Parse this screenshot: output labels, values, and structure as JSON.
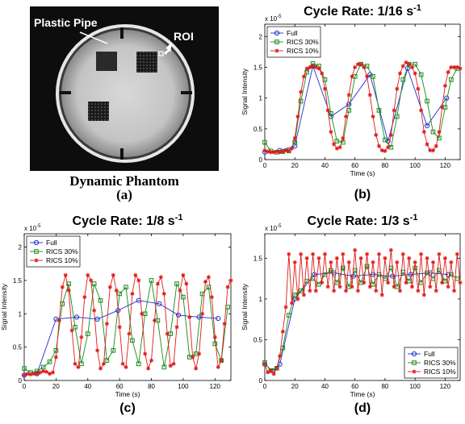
{
  "phantom": {
    "pipe_label": "Plastic Pipe",
    "roi_label": "ROI",
    "title": "Dynamic Phantom",
    "caption": "(a)"
  },
  "chart_data": [
    {
      "id": "b",
      "type": "line",
      "title_main": "Cycle Rate: 1/16 s",
      "title_sup": "-1",
      "caption": "(b)",
      "xlabel": "Time (s)",
      "ylabel": "Signal Intensity",
      "exponent_label": "x 10",
      "exponent_sup": "-5",
      "xlim": [
        0,
        130
      ],
      "ylim": [
        0,
        2.2
      ],
      "xticks": [
        "0",
        "20",
        "40",
        "60",
        "80",
        "100",
        "120"
      ],
      "yticks": [
        "0",
        "0.5",
        "1",
        "1.5",
        "2"
      ],
      "legend_position": "top-left",
      "series": [
        {
          "name": "Full",
          "color": "#1f2fd1",
          "marker": "circle",
          "x": [
            0,
            10,
            20,
            32,
            44,
            56,
            70,
            82,
            95,
            108,
            121
          ],
          "y": [
            0.12,
            0.15,
            0.22,
            1.52,
            0.7,
            0.9,
            1.38,
            0.3,
            1.48,
            0.55,
            1.0
          ]
        },
        {
          "name": "RICS 30%",
          "color": "#1a8a1a",
          "marker": "square",
          "x": [
            0,
            4,
            8,
            12,
            16,
            20,
            24,
            28,
            32,
            36,
            40,
            44,
            48,
            52,
            56,
            60,
            64,
            68,
            72,
            76,
            80,
            84,
            88,
            92,
            96,
            100,
            104,
            108,
            112,
            116,
            120,
            124,
            128
          ],
          "y": [
            0.28,
            0.14,
            0.12,
            0.13,
            0.14,
            0.28,
            0.95,
            1.42,
            1.56,
            1.52,
            1.3,
            0.75,
            0.3,
            0.28,
            0.8,
            1.35,
            1.55,
            1.52,
            1.35,
            0.8,
            0.32,
            0.2,
            0.7,
            1.3,
            1.55,
            1.55,
            1.38,
            0.95,
            0.45,
            0.35,
            0.85,
            1.3,
            1.48
          ]
        },
        {
          "name": "RICS 10%",
          "color": "#e01a1a",
          "marker": "star",
          "x": [
            0,
            2,
            4,
            6,
            8,
            10,
            12,
            14,
            16,
            18,
            20,
            22,
            24,
            26,
            28,
            30,
            32,
            34,
            36,
            38,
            40,
            42,
            44,
            46,
            48,
            50,
            52,
            54,
            56,
            58,
            60,
            62,
            64,
            66,
            68,
            70,
            72,
            74,
            76,
            78,
            80,
            82,
            84,
            86,
            88,
            90,
            92,
            94,
            96,
            98,
            100,
            102,
            104,
            106,
            108,
            110,
            112,
            114,
            116,
            118,
            120,
            122,
            124,
            126,
            128,
            130
          ],
          "y": [
            0.15,
            0.13,
            0.12,
            0.12,
            0.13,
            0.12,
            0.13,
            0.15,
            0.14,
            0.18,
            0.35,
            0.7,
            1.1,
            1.35,
            1.48,
            1.5,
            1.52,
            1.5,
            1.48,
            1.4,
            1.15,
            0.8,
            0.45,
            0.25,
            0.18,
            0.2,
            0.35,
            0.7,
            1.05,
            1.35,
            1.5,
            1.55,
            1.55,
            1.5,
            1.35,
            1.05,
            0.7,
            0.4,
            0.22,
            0.15,
            0.14,
            0.2,
            0.4,
            0.8,
            1.15,
            1.4,
            1.52,
            1.58,
            1.55,
            1.5,
            1.4,
            1.15,
            0.8,
            0.45,
            0.25,
            0.15,
            0.15,
            0.22,
            0.45,
            0.85,
            1.2,
            1.42,
            1.5,
            1.5,
            1.5,
            1.48
          ]
        }
      ]
    },
    {
      "id": "c",
      "type": "line",
      "title_main": "Cycle Rate: 1/8 s",
      "title_sup": "-1",
      "caption": "(c)",
      "xlabel": "Time (s)",
      "ylabel": "Signal Intensity",
      "exponent_label": "x 10",
      "exponent_sup": "-5",
      "xlim": [
        0,
        130
      ],
      "ylim": [
        0,
        2.2
      ],
      "xticks": [
        "0",
        "20",
        "40",
        "60",
        "80",
        "100",
        "120"
      ],
      "yticks": [
        "0",
        "0.5",
        "1",
        "1.5",
        "2"
      ],
      "legend_position": "top-left",
      "series": [
        {
          "name": "Full",
          "color": "#1f2fd1",
          "marker": "circle",
          "x": [
            0,
            8,
            20,
            33,
            46,
            59,
            72,
            85,
            97,
            110,
            122
          ],
          "y": [
            0.08,
            0.1,
            0.92,
            0.95,
            0.92,
            1.05,
            1.2,
            1.15,
            0.98,
            0.95,
            0.93
          ]
        },
        {
          "name": "RICS 30%",
          "color": "#1a8a1a",
          "marker": "square",
          "x": [
            0,
            4,
            8,
            12,
            16,
            20,
            24,
            28,
            32,
            36,
            40,
            44,
            48,
            52,
            56,
            60,
            64,
            68,
            72,
            76,
            80,
            84,
            88,
            92,
            96,
            100,
            104,
            108,
            112,
            116,
            120,
            124,
            128
          ],
          "y": [
            0.18,
            0.12,
            0.14,
            0.2,
            0.28,
            0.45,
            1.15,
            1.45,
            0.8,
            0.25,
            0.7,
            1.45,
            1.2,
            0.3,
            0.45,
            1.3,
            1.4,
            0.6,
            0.25,
            1.0,
            1.5,
            0.9,
            0.2,
            0.7,
            1.45,
            1.25,
            0.35,
            0.4,
            1.3,
            1.4,
            0.55,
            0.3,
            1.1
          ]
        },
        {
          "name": "RICS 10%",
          "color": "#e01a1a",
          "marker": "star",
          "x": [
            0,
            2,
            4,
            6,
            8,
            10,
            12,
            14,
            16,
            18,
            20,
            22,
            24,
            26,
            28,
            30,
            32,
            34,
            36,
            38,
            40,
            42,
            44,
            46,
            48,
            50,
            52,
            54,
            56,
            58,
            60,
            62,
            64,
            66,
            68,
            70,
            72,
            74,
            76,
            78,
            80,
            82,
            84,
            86,
            88,
            90,
            92,
            94,
            96,
            98,
            100,
            102,
            104,
            106,
            108,
            110,
            112,
            114,
            116,
            118,
            120,
            122,
            124,
            126,
            128,
            130
          ],
          "y": [
            0.08,
            0.1,
            0.09,
            0.1,
            0.1,
            0.12,
            0.14,
            0.13,
            0.1,
            0.12,
            0.35,
            0.9,
            1.4,
            1.58,
            1.35,
            0.75,
            0.25,
            0.2,
            0.65,
            1.25,
            1.58,
            1.5,
            1.05,
            0.45,
            0.18,
            0.25,
            0.85,
            1.4,
            1.58,
            1.35,
            0.8,
            0.25,
            0.2,
            0.7,
            1.3,
            1.58,
            1.5,
            1.0,
            0.4,
            0.18,
            0.3,
            0.9,
            1.45,
            1.55,
            1.3,
            0.7,
            0.22,
            0.25,
            0.8,
            1.35,
            1.58,
            1.45,
            0.95,
            0.35,
            0.18,
            0.4,
            1.0,
            1.48,
            1.55,
            1.25,
            0.65,
            0.2,
            0.3,
            0.85,
            1.4,
            1.5
          ]
        }
      ]
    },
    {
      "id": "d",
      "type": "line",
      "title_main": "Cycle Rate: 1/3 s",
      "title_sup": "-1",
      "caption": "(d)",
      "xlabel": "Time (s)",
      "ylabel": "Signal Intensity",
      "exponent_label": "x 10",
      "exponent_sup": "-5",
      "xlim": [
        0,
        130
      ],
      "ylim": [
        0,
        1.8
      ],
      "xticks": [
        "0",
        "20",
        "40",
        "60",
        "80",
        "100",
        "120"
      ],
      "yticks": [
        "0",
        "0.5",
        "1",
        "1.5"
      ],
      "legend_position": "bottom-right",
      "series": [
        {
          "name": "Full",
          "color": "#1f2fd1",
          "marker": "circle",
          "x": [
            0,
            5,
            10,
            20,
            33,
            46,
            59,
            72,
            85,
            97,
            110,
            122
          ],
          "y": [
            0.2,
            0.12,
            0.2,
            1.0,
            1.3,
            1.32,
            1.28,
            1.3,
            1.28,
            1.3,
            1.32,
            1.3
          ]
        },
        {
          "name": "RICS 30%",
          "color": "#1a8a1a",
          "marker": "square",
          "x": [
            0,
            4,
            8,
            12,
            16,
            20,
            24,
            28,
            32,
            36,
            40,
            44,
            48,
            52,
            56,
            60,
            64,
            68,
            72,
            76,
            80,
            84,
            88,
            92,
            96,
            100,
            104,
            108,
            112,
            116,
            120,
            124,
            128
          ],
          "y": [
            0.22,
            0.12,
            0.15,
            0.4,
            0.8,
            1.05,
            1.1,
            1.22,
            1.25,
            1.18,
            1.3,
            1.35,
            1.2,
            1.38,
            1.15,
            1.35,
            1.2,
            1.4,
            1.18,
            1.3,
            1.25,
            1.38,
            1.15,
            1.33,
            1.22,
            1.38,
            1.2,
            1.32,
            1.25,
            1.35,
            1.22,
            1.3,
            1.25
          ]
        },
        {
          "name": "RICS 10%",
          "color": "#e01a1a",
          "marker": "star",
          "x": [
            0,
            2,
            4,
            6,
            8,
            10,
            12,
            14,
            16,
            18,
            20,
            22,
            24,
            26,
            28,
            30,
            32,
            34,
            36,
            38,
            40,
            42,
            44,
            46,
            48,
            50,
            52,
            54,
            56,
            58,
            60,
            62,
            64,
            66,
            68,
            70,
            72,
            74,
            76,
            78,
            80,
            82,
            84,
            86,
            88,
            90,
            92,
            94,
            96,
            98,
            100,
            102,
            104,
            106,
            108,
            110,
            112,
            114,
            116,
            118,
            120,
            122,
            124,
            126,
            128,
            130
          ],
          "y": [
            0.2,
            0.1,
            0.12,
            0.08,
            0.15,
            0.3,
            0.6,
            0.9,
            1.55,
            0.95,
            1.45,
            1.0,
            1.55,
            1.05,
            1.5,
            1.1,
            1.55,
            1.1,
            1.5,
            1.2,
            1.55,
            1.15,
            1.45,
            1.1,
            1.5,
            1.15,
            1.55,
            1.1,
            1.45,
            1.15,
            1.6,
            1.1,
            1.5,
            1.2,
            1.55,
            1.15,
            1.45,
            1.1,
            1.55,
            1.05,
            1.5,
            1.2,
            1.6,
            1.15,
            1.45,
            1.1,
            1.55,
            1.2,
            1.5,
            1.15,
            1.45,
            1.1,
            1.55,
            1.05,
            1.5,
            1.15,
            1.45,
            1.1,
            1.55,
            1.2,
            1.5,
            1.15,
            1.45,
            1.1,
            1.55,
            1.2
          ]
        }
      ]
    }
  ]
}
